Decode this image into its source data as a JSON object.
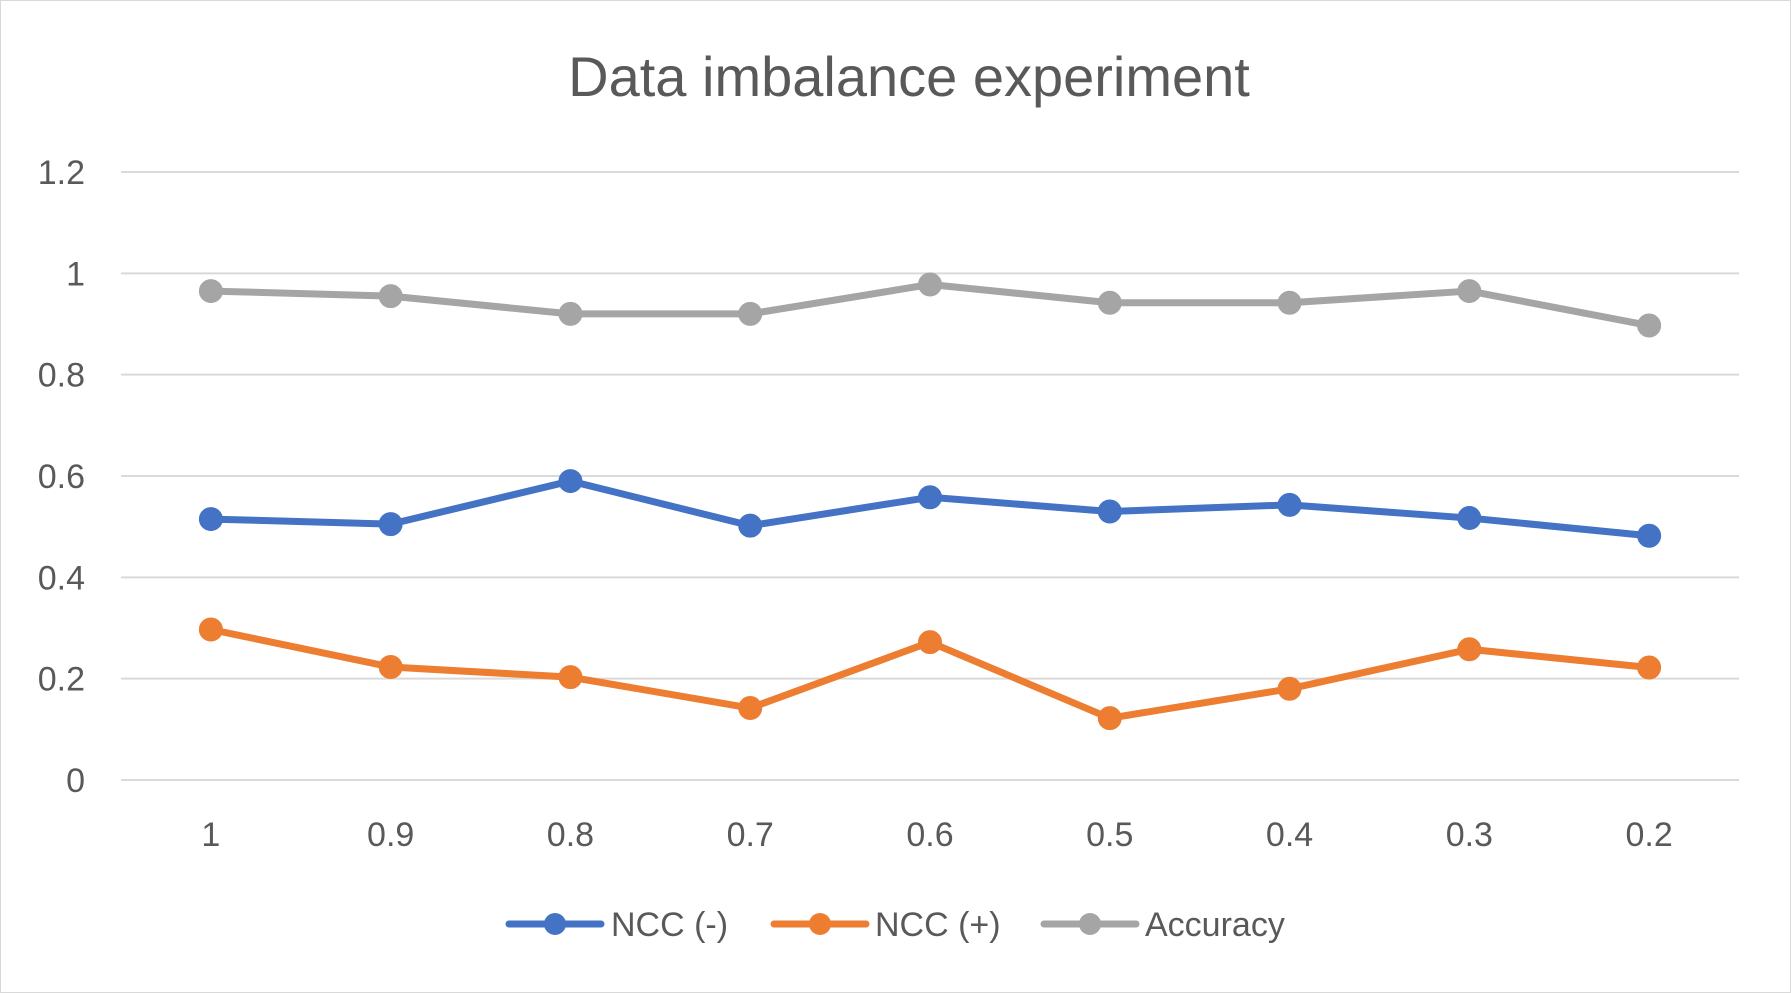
{
  "chart_data": {
    "type": "line",
    "title": "Data imbalance experiment",
    "xlabel": "",
    "ylabel": "",
    "categories": [
      "1",
      "0.9",
      "0.8",
      "0.7",
      "0.6",
      "0.5",
      "0.4",
      "0.3",
      "0.2"
    ],
    "ylim": [
      0,
      1.2
    ],
    "yticks": [
      "0",
      "0.2",
      "0.4",
      "0.6",
      "0.8",
      "1",
      "1.2"
    ],
    "ytick_values": [
      0,
      0.2,
      0.4,
      0.6,
      0.8,
      1.0,
      1.2
    ],
    "grid": true,
    "legend_position": "bottom",
    "series": [
      {
        "name": "NCC (-)",
        "color": "#4472c4",
        "values": [
          0.515,
          0.505,
          0.59,
          0.502,
          0.558,
          0.53,
          0.543,
          0.517,
          0.482
        ]
      },
      {
        "name": "NCC (+)",
        "color": "#ed7d31",
        "values": [
          0.297,
          0.223,
          0.203,
          0.142,
          0.272,
          0.122,
          0.18,
          0.258,
          0.222
        ]
      },
      {
        "name": "Accuracy",
        "color": "#a5a5a5",
        "values": [
          0.965,
          0.955,
          0.92,
          0.92,
          0.978,
          0.942,
          0.942,
          0.965,
          0.897
        ]
      }
    ]
  }
}
